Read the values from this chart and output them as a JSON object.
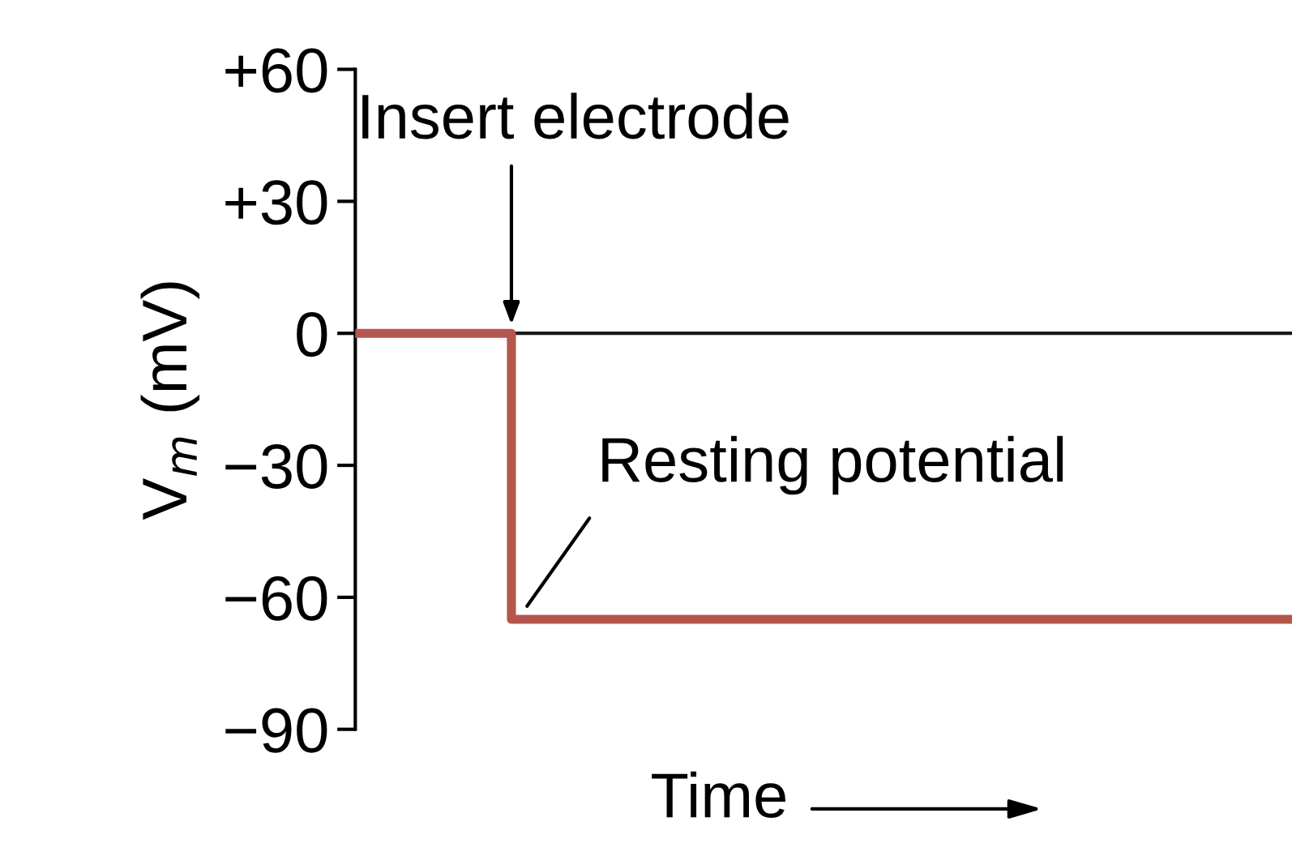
{
  "chart_data": {
    "type": "step",
    "xlabel": "Time",
    "ylabel": "V$_{m}$ (mV)",
    "categories": [
      null,
      null,
      null,
      null,
      null,
      null,
      null
    ],
    "series": [
      {
        "color": "#b5564c",
        "values": [
          0,
          -65,
          -65,
          -65,
          -65,
          -65,
          -65
        ]
      }
    ],
    "ylim": [
      -90,
      60
    ],
    "yticks": [
      {
        "value": 60,
        "label": "+60"
      },
      {
        "value": 30,
        "label": "+30"
      },
      0,
      {
        "value": -30,
        "label": "−30"
      },
      {
        "value": -60,
        "label": "−60"
      },
      {
        "value": -90,
        "label": "−90"
      }
    ],
    "ref_lines": [
      {
        "axis": "y",
        "value": 0,
        "color": "#1a1a1a"
      }
    ],
    "annotations": [
      "Insert electrode",
      "Resting potential"
    ],
    "grid": false,
    "legend": false
  }
}
